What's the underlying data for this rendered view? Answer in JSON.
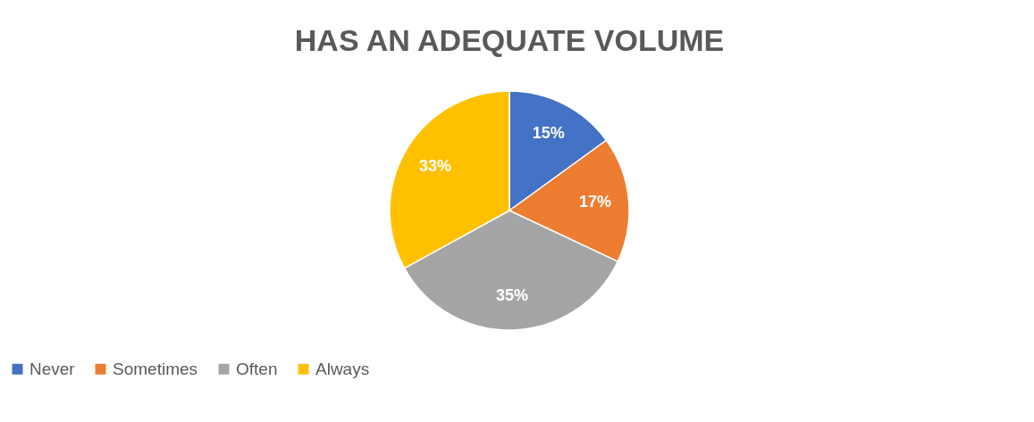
{
  "chart_data": {
    "type": "pie",
    "title": "HAS AN ADEQUATE VOLUME",
    "categories": [
      "Never",
      "Sometimes",
      "Often",
      "Always"
    ],
    "values": [
      15,
      17,
      35,
      33
    ],
    "colors": [
      "#4472c4",
      "#ed7d31",
      "#a5a5a5",
      "#ffc000"
    ],
    "value_labels": [
      "15%",
      "17%",
      "35%",
      "33%"
    ],
    "legend": "bottom"
  }
}
